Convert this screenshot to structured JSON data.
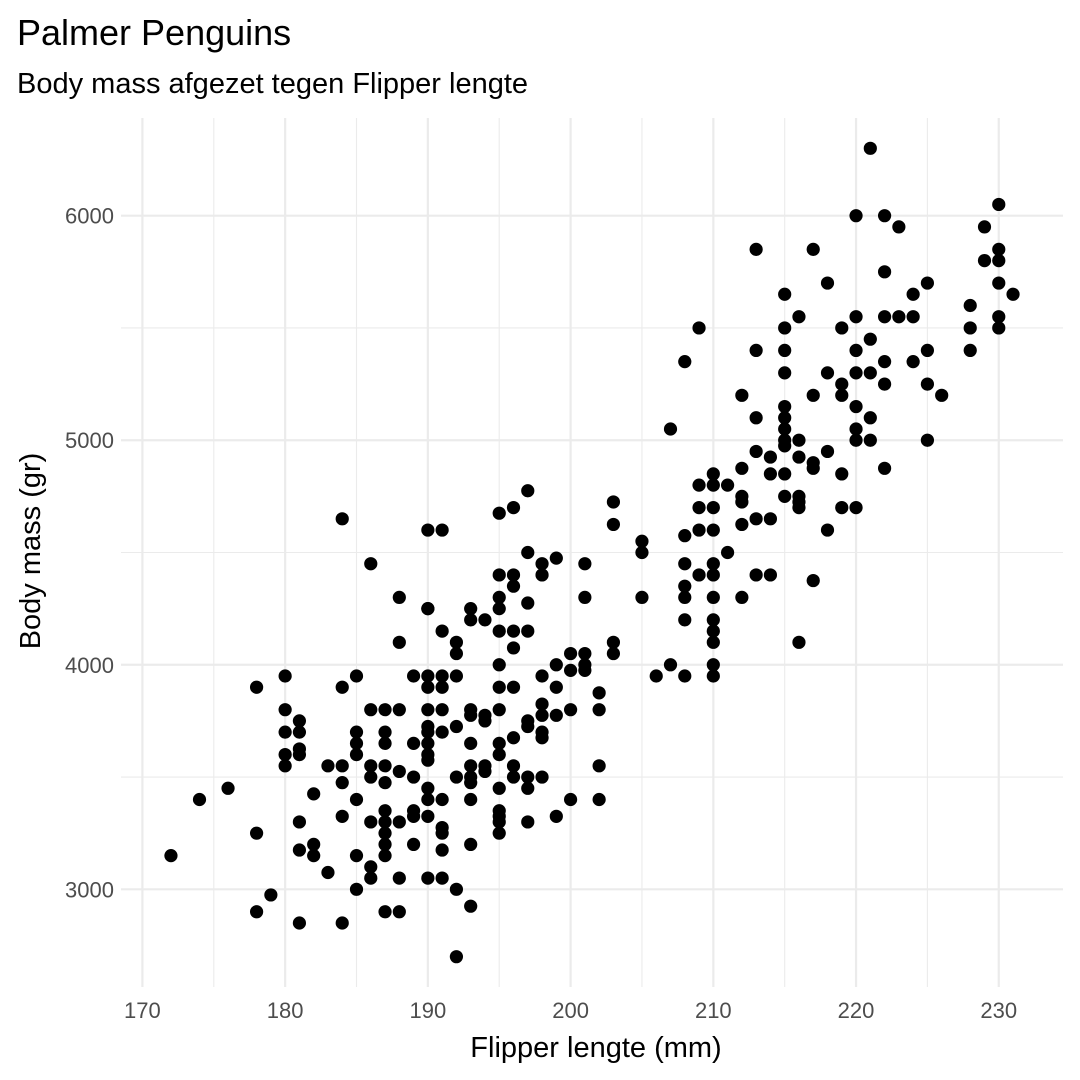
{
  "chart_data": {
    "type": "scatter",
    "title": "Palmer Penguins",
    "subtitle": "Body mass afgezet tegen Flipper lengte",
    "xlabel": "Flipper lengte (mm)",
    "ylabel": "Body mass (gr)",
    "xlim": [
      168.5,
      234.5
    ],
    "ylim": [
      2565,
      6435
    ],
    "x_ticks": [
      170,
      180,
      190,
      200,
      210,
      220,
      230
    ],
    "y_ticks": [
      3000,
      4000,
      5000,
      6000
    ],
    "x_minor_ticks": [
      175,
      185,
      195,
      205,
      215,
      225
    ],
    "y_minor_ticks": [
      3500,
      4500,
      5500
    ],
    "grid": true,
    "point_color": "#000000",
    "points": [
      [
        172,
        3150
      ],
      [
        174,
        3400
      ],
      [
        176,
        3450
      ],
      [
        178,
        3900
      ],
      [
        178,
        3250
      ],
      [
        178,
        2900
      ],
      [
        179,
        2975
      ],
      [
        180,
        3950
      ],
      [
        180,
        3800
      ],
      [
        180,
        3700
      ],
      [
        180,
        3600
      ],
      [
        180,
        3550
      ],
      [
        181,
        3750
      ],
      [
        181,
        3700
      ],
      [
        181,
        3625
      ],
      [
        181,
        3600
      ],
      [
        181,
        3300
      ],
      [
        181,
        3175
      ],
      [
        181,
        2850
      ],
      [
        182,
        3425
      ],
      [
        182,
        3200
      ],
      [
        182,
        3150
      ],
      [
        183,
        3550
      ],
      [
        183,
        3075
      ],
      [
        184,
        4650
      ],
      [
        184,
        3900
      ],
      [
        184,
        3550
      ],
      [
        184,
        3475
      ],
      [
        184,
        3325
      ],
      [
        184,
        2850
      ],
      [
        185,
        3950
      ],
      [
        185,
        3700
      ],
      [
        185,
        3650
      ],
      [
        185,
        3600
      ],
      [
        185,
        3400
      ],
      [
        185,
        3150
      ],
      [
        185,
        3000
      ],
      [
        186,
        4450
      ],
      [
        186,
        3800
      ],
      [
        186,
        3550
      ],
      [
        186,
        3500
      ],
      [
        186,
        3300
      ],
      [
        186,
        3100
      ],
      [
        186,
        3050
      ],
      [
        187,
        3800
      ],
      [
        187,
        3700
      ],
      [
        187,
        3650
      ],
      [
        187,
        3550
      ],
      [
        187,
        3475
      ],
      [
        187,
        3350
      ],
      [
        187,
        3300
      ],
      [
        187,
        3250
      ],
      [
        187,
        3200
      ],
      [
        187,
        3150
      ],
      [
        187,
        2900
      ],
      [
        188,
        4300
      ],
      [
        188,
        4100
      ],
      [
        188,
        3800
      ],
      [
        188,
        3525
      ],
      [
        188,
        3300
      ],
      [
        188,
        3050
      ],
      [
        188,
        2900
      ],
      [
        189,
        3950
      ],
      [
        189,
        3650
      ],
      [
        189,
        3500
      ],
      [
        189,
        3350
      ],
      [
        189,
        3325
      ],
      [
        189,
        3200
      ],
      [
        190,
        4600
      ],
      [
        190,
        4250
      ],
      [
        190,
        4250
      ],
      [
        190,
        3950
      ],
      [
        190,
        3900
      ],
      [
        190,
        3800
      ],
      [
        190,
        3725
      ],
      [
        190,
        3700
      ],
      [
        190,
        3650
      ],
      [
        190,
        3600
      ],
      [
        190,
        3575
      ],
      [
        190,
        3450
      ],
      [
        190,
        3400
      ],
      [
        190,
        3325
      ],
      [
        190,
        3050
      ],
      [
        191,
        4600
      ],
      [
        191,
        4150
      ],
      [
        191,
        3950
      ],
      [
        191,
        3900
      ],
      [
        191,
        3800
      ],
      [
        191,
        3700
      ],
      [
        191,
        3400
      ],
      [
        191,
        3275
      ],
      [
        191,
        3250
      ],
      [
        191,
        3175
      ],
      [
        191,
        3050
      ],
      [
        192,
        4100
      ],
      [
        192,
        4050
      ],
      [
        192,
        3950
      ],
      [
        192,
        3725
      ],
      [
        192,
        3500
      ],
      [
        192,
        3000
      ],
      [
        192,
        2700
      ],
      [
        193,
        4250
      ],
      [
        193,
        4200
      ],
      [
        193,
        3800
      ],
      [
        193,
        3775
      ],
      [
        193,
        3650
      ],
      [
        193,
        3550
      ],
      [
        193,
        3500
      ],
      [
        193,
        3475
      ],
      [
        193,
        3400
      ],
      [
        193,
        3200
      ],
      [
        193,
        2925
      ],
      [
        194,
        4200
      ],
      [
        194,
        3775
      ],
      [
        194,
        3750
      ],
      [
        194,
        3550
      ],
      [
        194,
        3525
      ],
      [
        195,
        4675
      ],
      [
        195,
        4400
      ],
      [
        195,
        4300
      ],
      [
        195,
        4250
      ],
      [
        195,
        4150
      ],
      [
        195,
        4000
      ],
      [
        195,
        3900
      ],
      [
        195,
        3800
      ],
      [
        195,
        3650
      ],
      [
        195,
        3600
      ],
      [
        195,
        3450
      ],
      [
        195,
        3350
      ],
      [
        195,
        3325
      ],
      [
        195,
        3300
      ],
      [
        195,
        3250
      ],
      [
        196,
        4700
      ],
      [
        196,
        4400
      ],
      [
        196,
        4350
      ],
      [
        196,
        4150
      ],
      [
        196,
        4075
      ],
      [
        196,
        3900
      ],
      [
        196,
        3675
      ],
      [
        196,
        3550
      ],
      [
        196,
        3500
      ],
      [
        197,
        4775
      ],
      [
        197,
        4500
      ],
      [
        197,
        4275
      ],
      [
        197,
        4150
      ],
      [
        197,
        3750
      ],
      [
        197,
        3725
      ],
      [
        197,
        3500
      ],
      [
        197,
        3450
      ],
      [
        197,
        3300
      ],
      [
        198,
        4450
      ],
      [
        198,
        4400
      ],
      [
        198,
        3950
      ],
      [
        198,
        3825
      ],
      [
        198,
        3775
      ],
      [
        198,
        3700
      ],
      [
        198,
        3675
      ],
      [
        198,
        3500
      ],
      [
        199,
        4475
      ],
      [
        199,
        4000
      ],
      [
        199,
        3900
      ],
      [
        199,
        3775
      ],
      [
        199,
        3325
      ],
      [
        200,
        4050
      ],
      [
        200,
        3975
      ],
      [
        200,
        3800
      ],
      [
        200,
        3400
      ],
      [
        201,
        4450
      ],
      [
        201,
        4300
      ],
      [
        201,
        4050
      ],
      [
        201,
        4000
      ],
      [
        201,
        3975
      ],
      [
        202,
        3875
      ],
      [
        202,
        3800
      ],
      [
        202,
        3550
      ],
      [
        202,
        3400
      ],
      [
        203,
        4725
      ],
      [
        203,
        4625
      ],
      [
        203,
        4100
      ],
      [
        203,
        4050
      ],
      [
        205,
        4550
      ],
      [
        205,
        4500
      ],
      [
        205,
        4300
      ],
      [
        206,
        3950
      ],
      [
        207,
        5050
      ],
      [
        207,
        4000
      ],
      [
        208,
        5350
      ],
      [
        208,
        4575
      ],
      [
        208,
        4450
      ],
      [
        208,
        4350
      ],
      [
        208,
        4300
      ],
      [
        208,
        4200
      ],
      [
        208,
        3950
      ],
      [
        209,
        5500
      ],
      [
        209,
        4800
      ],
      [
        209,
        4700
      ],
      [
        209,
        4600
      ],
      [
        209,
        4400
      ],
      [
        210,
        4850
      ],
      [
        210,
        4800
      ],
      [
        210,
        4700
      ],
      [
        210,
        4600
      ],
      [
        210,
        4450
      ],
      [
        210,
        4400
      ],
      [
        210,
        4300
      ],
      [
        210,
        4200
      ],
      [
        210,
        4150
      ],
      [
        210,
        4100
      ],
      [
        210,
        4000
      ],
      [
        210,
        3950
      ],
      [
        211,
        4800
      ],
      [
        211,
        4500
      ],
      [
        212,
        5200
      ],
      [
        212,
        4875
      ],
      [
        212,
        4750
      ],
      [
        212,
        4725
      ],
      [
        212,
        4625
      ],
      [
        212,
        4300
      ],
      [
        213,
        5850
      ],
      [
        213,
        5400
      ],
      [
        213,
        5100
      ],
      [
        213,
        4950
      ],
      [
        213,
        4650
      ],
      [
        213,
        4400
      ],
      [
        214,
        4925
      ],
      [
        214,
        4850
      ],
      [
        214,
        4650
      ],
      [
        214,
        4400
      ],
      [
        215,
        5650
      ],
      [
        215,
        5500
      ],
      [
        215,
        5400
      ],
      [
        215,
        5300
      ],
      [
        215,
        5150
      ],
      [
        215,
        5100
      ],
      [
        215,
        5050
      ],
      [
        215,
        5000
      ],
      [
        215,
        4975
      ],
      [
        215,
        4850
      ],
      [
        215,
        4750
      ],
      [
        216,
        5550
      ],
      [
        216,
        5000
      ],
      [
        216,
        4925
      ],
      [
        216,
        4750
      ],
      [
        216,
        4725
      ],
      [
        216,
        4700
      ],
      [
        216,
        4100
      ],
      [
        217,
        5850
      ],
      [
        217,
        5200
      ],
      [
        217,
        4900
      ],
      [
        217,
        4875
      ],
      [
        217,
        4375
      ],
      [
        218,
        5700
      ],
      [
        218,
        5300
      ],
      [
        218,
        4950
      ],
      [
        218,
        4600
      ],
      [
        219,
        5500
      ],
      [
        219,
        5250
      ],
      [
        219,
        5200
      ],
      [
        219,
        4850
      ],
      [
        219,
        4700
      ],
      [
        220,
        6000
      ],
      [
        220,
        5550
      ],
      [
        220,
        5400
      ],
      [
        220,
        5300
      ],
      [
        220,
        5150
      ],
      [
        220,
        5050
      ],
      [
        220,
        5000
      ],
      [
        220,
        4700
      ],
      [
        221,
        6300
      ],
      [
        221,
        5450
      ],
      [
        221,
        5300
      ],
      [
        221,
        5100
      ],
      [
        221,
        5000
      ],
      [
        222,
        6000
      ],
      [
        222,
        5750
      ],
      [
        222,
        5550
      ],
      [
        222,
        5350
      ],
      [
        222,
        5250
      ],
      [
        222,
        4875
      ],
      [
        223,
        5950
      ],
      [
        223,
        5550
      ],
      [
        224,
        5650
      ],
      [
        224,
        5550
      ],
      [
        224,
        5350
      ],
      [
        225,
        5700
      ],
      [
        225,
        5400
      ],
      [
        225,
        5250
      ],
      [
        225,
        5000
      ],
      [
        226,
        5200
      ],
      [
        228,
        5600
      ],
      [
        228,
        5500
      ],
      [
        228,
        5400
      ],
      [
        229,
        5950
      ],
      [
        229,
        5800
      ],
      [
        230,
        6050
      ],
      [
        230,
        5850
      ],
      [
        230,
        5800
      ],
      [
        230,
        5700
      ],
      [
        230,
        5550
      ],
      [
        230,
        5500
      ],
      [
        231,
        5650
      ]
    ]
  }
}
